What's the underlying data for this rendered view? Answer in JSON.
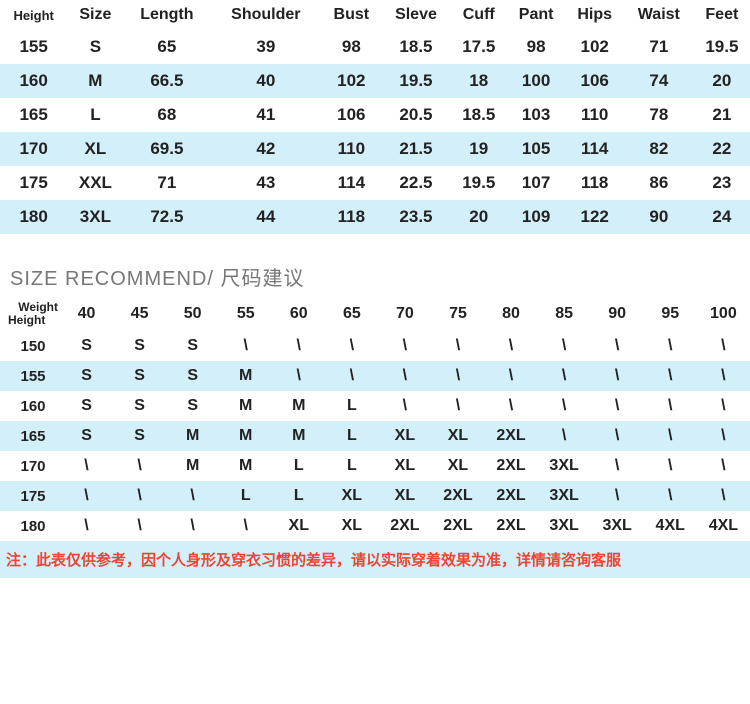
{
  "size_table": {
    "columns": [
      "Height",
      "Size",
      "Length",
      "Shoulder",
      "Bust",
      "Sleve",
      "Cuff",
      "Pant",
      "Hips",
      "Waist",
      "Feet"
    ],
    "rows": [
      [
        "155",
        "S",
        "65",
        "39",
        "98",
        "18.5",
        "17.5",
        "98",
        "102",
        "71",
        "19.5"
      ],
      [
        "160",
        "M",
        "66.5",
        "40",
        "102",
        "19.5",
        "18",
        "100",
        "106",
        "74",
        "20"
      ],
      [
        "165",
        "L",
        "68",
        "41",
        "106",
        "20.5",
        "18.5",
        "103",
        "110",
        "78",
        "21"
      ],
      [
        "170",
        "XL",
        "69.5",
        "42",
        "110",
        "21.5",
        "19",
        "105",
        "114",
        "82",
        "22"
      ],
      [
        "175",
        "XXL",
        "71",
        "43",
        "114",
        "22.5",
        "19.5",
        "107",
        "118",
        "86",
        "23"
      ],
      [
        "180",
        "3XL",
        "72.5",
        "44",
        "118",
        "23.5",
        "20",
        "109",
        "122",
        "90",
        "24"
      ]
    ],
    "stripe_colors": [
      "#ffffff",
      "#d3effa"
    ]
  },
  "section_title": "SIZE RECOMMEND/ 尺码建议",
  "rec_table": {
    "axis_weight": "Weight",
    "axis_height": "Height",
    "weights": [
      "40",
      "45",
      "50",
      "55",
      "60",
      "65",
      "70",
      "75",
      "80",
      "85",
      "90",
      "95",
      "100"
    ],
    "heights": [
      "150",
      "155",
      "160",
      "165",
      "170",
      "175",
      "180"
    ],
    "grid": [
      [
        "S",
        "S",
        "S",
        "\\",
        "\\",
        "\\",
        "\\",
        "\\",
        "\\",
        "\\",
        "\\",
        "\\",
        "\\"
      ],
      [
        "S",
        "S",
        "S",
        "M",
        "\\",
        "\\",
        "\\",
        "\\",
        "\\",
        "\\",
        "\\",
        "\\",
        "\\"
      ],
      [
        "S",
        "S",
        "S",
        "M",
        "M",
        "L",
        "\\",
        "\\",
        "\\",
        "\\",
        "\\",
        "\\",
        "\\"
      ],
      [
        "S",
        "S",
        "M",
        "M",
        "M",
        "L",
        "XL",
        "XL",
        "2XL",
        "\\",
        "\\",
        "\\",
        "\\"
      ],
      [
        "\\",
        "\\",
        "M",
        "M",
        "L",
        "L",
        "XL",
        "XL",
        "2XL",
        "3XL",
        "\\",
        "\\",
        "\\"
      ],
      [
        "\\",
        "\\",
        "\\",
        "L",
        "L",
        "XL",
        "XL",
        "2XL",
        "2XL",
        "3XL",
        "\\",
        "\\",
        "\\"
      ],
      [
        "\\",
        "\\",
        "\\",
        "\\",
        "XL",
        "XL",
        "2XL",
        "2XL",
        "2XL",
        "3XL",
        "3XL",
        "4XL",
        "4XL"
      ]
    ],
    "stripe_colors": [
      "#ffffff",
      "#d3effa"
    ]
  },
  "note": "注：此表仅供参考，因个人身形及穿衣习惯的差异，请以实际穿着效果为准，详情请咨询客服",
  "colors": {
    "stripe": "#d3effa",
    "note_text": "#ee4433",
    "section_title": "#777777"
  }
}
